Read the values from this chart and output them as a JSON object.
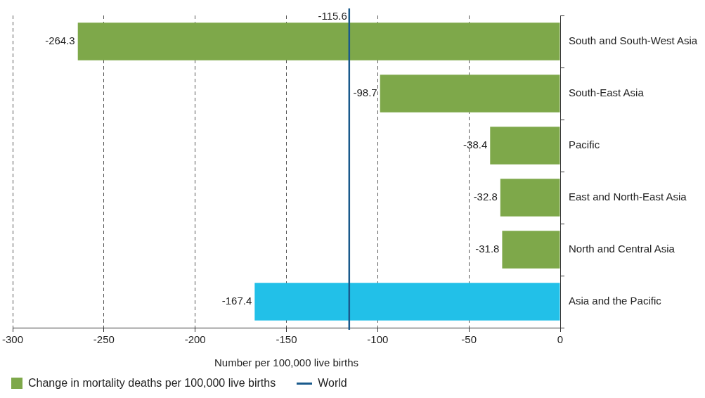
{
  "chart_data": {
    "type": "bar",
    "orientation": "horizontal",
    "xlabel": "Number per 100,000 live births",
    "categories": [
      "South and South-West Asia",
      "South-East Asia",
      "Pacific",
      "East and North-East Asia",
      "North and Central Asia",
      "Asia and the Pacific"
    ],
    "series": [
      {
        "name": "Change in mortality deaths per 100,000 live births",
        "color": "#7ea84a",
        "colors": [
          "#7ea84a",
          "#7ea84a",
          "#7ea84a",
          "#7ea84a",
          "#7ea84a",
          "#22c0e8"
        ],
        "values": [
          -264.3,
          -98.7,
          -38.4,
          -32.8,
          -31.8,
          -167.4
        ]
      }
    ],
    "xlim": [
      -300,
      0
    ],
    "xticks": [
      -300,
      -250,
      -200,
      -150,
      -100,
      -50,
      0
    ],
    "ref_lines": [
      {
        "axis": "x",
        "value": -115.6,
        "label": "World",
        "color": "#1a5a8c"
      }
    ],
    "annotations": [
      {
        "text": "-115.6",
        "x": -115.6
      }
    ],
    "data_labels": true,
    "grid": "x",
    "legend": "bottom"
  }
}
